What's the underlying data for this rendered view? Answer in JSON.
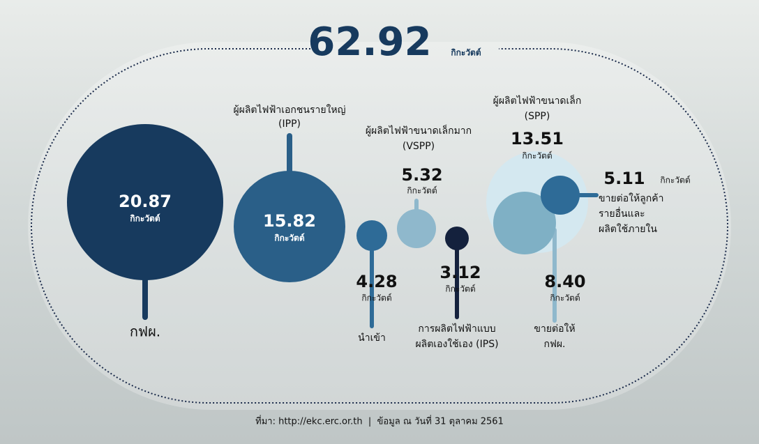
{
  "header": {
    "total": "62.92",
    "unit": "กิกะวัตต์"
  },
  "nodes": [
    {
      "label": [
        "กฟผ."
      ],
      "value": "20.87",
      "unit": "กิกะวัตต์"
    },
    {
      "label": [
        "ผู้ผลิตไฟฟ้าเอกชนรายใหญ่",
        "(IPP)"
      ],
      "value": "15.82",
      "unit": "กิกะวัตต์"
    },
    {
      "label": [
        "นำเข้า"
      ],
      "value": "4.28",
      "unit": "กิกะวัตต์"
    },
    {
      "label": [
        "ผู้ผลิตไฟฟ้าขนาดเล็กมาก",
        "(VSPP)"
      ],
      "value": "5.32",
      "unit": "กิกะวัตต์"
    },
    {
      "label": [
        "การผลิตไฟฟ้าแบบ",
        "ผลิตเองใช้เอง (IPS)"
      ],
      "value": "3.12",
      "unit": "กิกะวัตต์"
    },
    {
      "label": [
        "ผู้ผลิตไฟฟ้าขนาดเล็ก",
        "(SPP)"
      ],
      "value": "13.51",
      "unit": "กิกะวัตต์",
      "split": [
        {
          "label": [
            "ขายต่อให้ลูกค้า",
            "รายอื่นและ",
            "ผลิตใช้ภายใน"
          ],
          "value": "5.11",
          "unit": "กิกะวัตต์"
        },
        {
          "label": [
            "ขายต่อให้",
            "กฟผ."
          ],
          "value": "8.40",
          "unit": "กิกะวัตต์"
        }
      ]
    }
  ],
  "footer": {
    "source": "ที่มา: http://ekc.erc.or.th  |  ข้อมูล ณ วันที่ 31 ตุลาคม 2561"
  }
}
